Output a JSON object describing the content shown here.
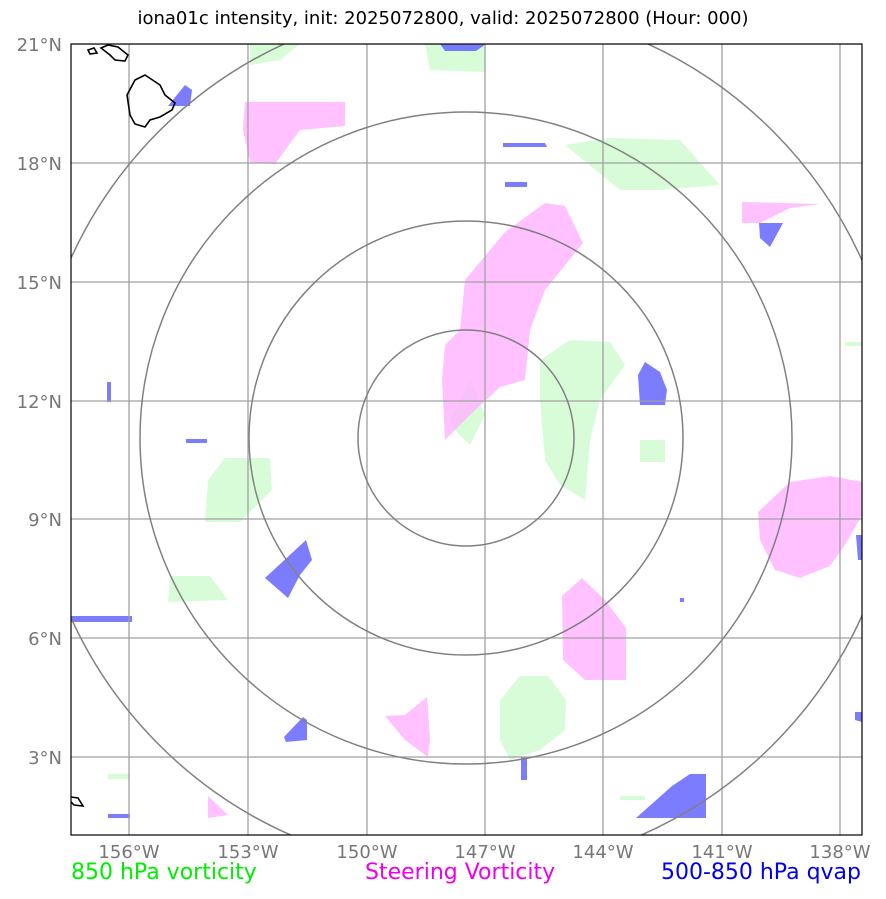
{
  "title": "iona01c intensity, init: 2025072800, valid: 2025072800 (Hour: 000)",
  "map": {
    "lon_range": [
      -158.0,
      -137.5
    ],
    "lat_range": [
      1.0,
      21.0
    ],
    "lon_ticks": [
      "156°W",
      "153°W",
      "150°W",
      "147°W",
      "144°W",
      "141°W",
      "138°W"
    ],
    "lat_ticks": [
      "21°N",
      "18°N",
      "15°N",
      "12°N",
      "9°N",
      "6°N",
      "3°N"
    ],
    "range_ring_center": {
      "lon": -147.5,
      "lat": 11.1
    },
    "range_ring_count": 4,
    "colors": {
      "vorticity_850": "#c8fbc8",
      "steering_vorticity": "#ffb6ff",
      "qvap_500_850": "#6a6aff",
      "grid": "#a0a0a0",
      "rings": "#808080",
      "coastline": "#000000"
    }
  },
  "legend": {
    "vorticity_850": "850 hPa vorticity",
    "steering_vorticity": "Steering Vorticity",
    "qvap": "500-850 hPa qvap"
  }
}
